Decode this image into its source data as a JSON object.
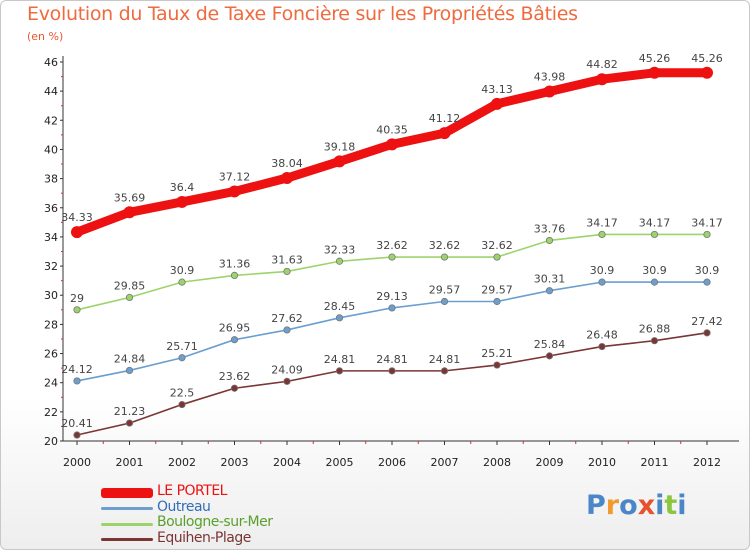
{
  "chart_data": {
    "type": "line",
    "title": "Evolution du Taux de Taxe Foncière sur les Propriétés Bâties",
    "unit_label": "(en %)",
    "categories": [
      "2000",
      "2001",
      "2002",
      "2003",
      "2004",
      "2005",
      "2006",
      "2007",
      "2008",
      "2009",
      "2010",
      "2011",
      "2012"
    ],
    "ylim": [
      20,
      46
    ],
    "yticks": [
      20,
      22,
      24,
      26,
      28,
      30,
      32,
      34,
      36,
      38,
      40,
      42,
      44,
      46
    ],
    "grid": false,
    "legend_position": "bottom-left",
    "series": [
      {
        "name": "LE PORTEL",
        "color": "#ee1111",
        "values": [
          34.33,
          35.69,
          36.4,
          37.12,
          38.04,
          39.18,
          40.35,
          41.12,
          43.13,
          43.98,
          44.82,
          45.26,
          45.26
        ],
        "labels": [
          "34.33",
          "35.69",
          "36.4",
          "37.12",
          "38.04",
          "39.18",
          "40.35",
          "41.12",
          "43.13",
          "43.98",
          "44.82",
          "45.26",
          "45.26"
        ]
      },
      {
        "name": "Outreau",
        "color": "#6a9fcf",
        "values": [
          24.12,
          24.84,
          25.71,
          26.95,
          27.62,
          28.45,
          29.13,
          29.57,
          29.57,
          30.31,
          30.9,
          30.9,
          30.9
        ],
        "labels": [
          "24.12",
          "24.84",
          "25.71",
          "26.95",
          "27.62",
          "28.45",
          "29.13",
          "29.57",
          "29.57",
          "30.31",
          "30.9",
          "30.9",
          "30.9"
        ]
      },
      {
        "name": "Boulogne-sur-Mer",
        "color": "#9dd36b",
        "values": [
          29,
          29.85,
          30.9,
          31.36,
          31.63,
          32.33,
          32.62,
          32.62,
          32.62,
          33.76,
          34.17,
          34.17,
          34.17
        ],
        "labels": [
          "29",
          "29.85",
          "30.9",
          "31.36",
          "31.63",
          "32.33",
          "32.62",
          "32.62",
          "32.62",
          "33.76",
          "34.17",
          "34.17",
          "34.17"
        ]
      },
      {
        "name": "Equihen-Plage",
        "color": "#7b3535",
        "values": [
          20.41,
          21.23,
          22.5,
          23.62,
          24.09,
          24.81,
          24.81,
          24.81,
          25.21,
          25.84,
          26.48,
          26.88,
          27.42
        ],
        "labels": [
          "20.41",
          "21.23",
          "22.5",
          "23.62",
          "24.09",
          "24.81",
          "24.81",
          "24.81",
          "25.21",
          "25.84",
          "26.48",
          "26.88",
          "27.42"
        ]
      }
    ]
  },
  "legend": {
    "items": [
      {
        "label": "LE PORTEL",
        "color": "#ee1111",
        "text_color": "#ee1111"
      },
      {
        "label": "Outreau",
        "color": "#6a9fcf",
        "text_color": "#2f6fb5"
      },
      {
        "label": "Boulogne-sur-Mer",
        "color": "#9dd36b",
        "text_color": "#5aa02c"
      },
      {
        "label": "Equihen-Plage",
        "color": "#7b3535",
        "text_color": "#7b3535"
      }
    ]
  },
  "logo": {
    "letters": [
      "P",
      "r",
      "o",
      "x",
      "i",
      "t",
      "i"
    ],
    "colors": [
      "#4a86c8",
      "#f29a2e",
      "#4a86c8",
      "#e8512e",
      "#4a86c8",
      "#8cc63f",
      "#4a86c8"
    ]
  }
}
